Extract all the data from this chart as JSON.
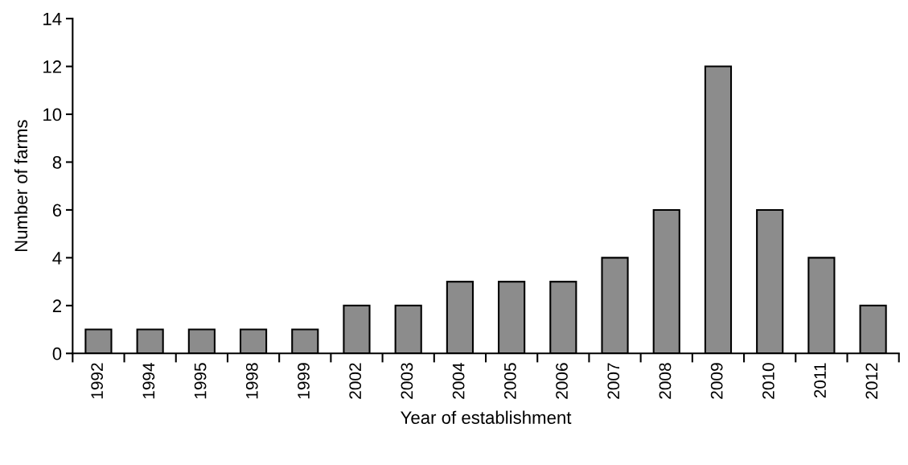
{
  "chart_data": {
    "type": "bar",
    "xlabel": "Year of establishment",
    "ylabel": "Number of farms",
    "categories": [
      "1992",
      "1994",
      "1995",
      "1998",
      "1999",
      "2002",
      "2003",
      "2004",
      "2005",
      "2006",
      "2007",
      "2008",
      "2009",
      "2010",
      "2011",
      "2012"
    ],
    "values": [
      1,
      1,
      1,
      1,
      1,
      2,
      2,
      3,
      3,
      3,
      4,
      6,
      12,
      6,
      4,
      2
    ],
    "color": "#8c8c8c",
    "ylim": [
      0,
      14
    ],
    "yticks": [
      0,
      2,
      4,
      6,
      8,
      10,
      12,
      14
    ],
    "grid": false,
    "legend": false
  }
}
